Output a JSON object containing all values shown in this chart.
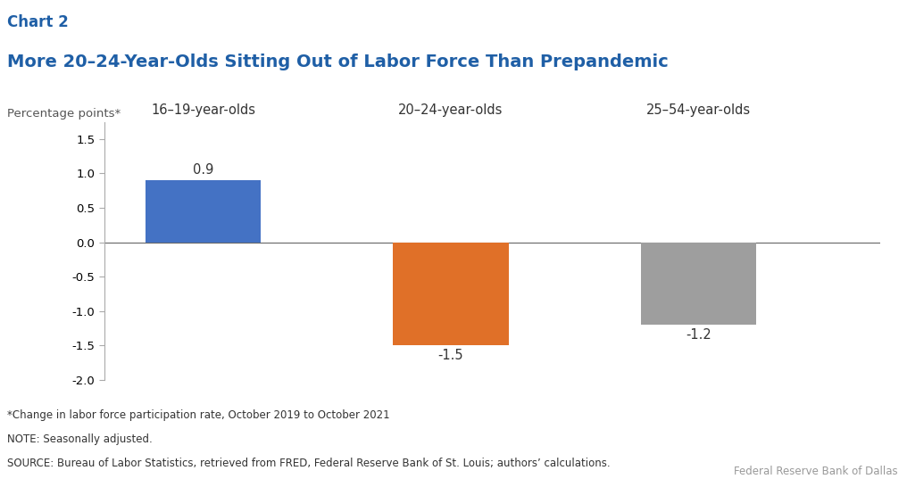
{
  "chart_label": "Chart 2",
  "title": "More 20–24-Year-Olds Sitting Out of Labor Force Than Prepandemic",
  "ylabel": "Percentage points*",
  "categories": [
    "16–19-year-olds",
    "20–24-year-olds",
    "25–54-year-olds"
  ],
  "values": [
    0.9,
    -1.5,
    -1.2
  ],
  "bar_colors": [
    "#4472C4",
    "#E07028",
    "#9E9E9E"
  ],
  "ylim": [
    -2.0,
    1.75
  ],
  "yticks": [
    -2.0,
    -1.5,
    -1.0,
    -0.5,
    0.0,
    0.5,
    1.0,
    1.5
  ],
  "bar_positions": [
    1,
    4,
    7
  ],
  "bar_width": 1.4,
  "title_color": "#1F5FA6",
  "chart_label_color": "#1F5FA6",
  "footnote_line1": "*Change in labor force participation rate, October 2019 to October 2021",
  "footnote_line2": "NOTE: Seasonally adjusted.",
  "footnote_line3": "SOURCE: Bureau of Labor Statistics, retrieved from FRED, Federal Reserve Bank of St. Louis; authors’ calculations.",
  "source_credit": "Federal Reserve Bank of Dallas",
  "background_color": "#FFFFFF",
  "title_fontsize": 14,
  "chart_label_fontsize": 12,
  "category_fontsize": 10.5,
  "ylabel_fontsize": 9.5,
  "value_label_fontsize": 10.5,
  "footnote_fontsize": 8.5,
  "credit_fontsize": 8.5
}
